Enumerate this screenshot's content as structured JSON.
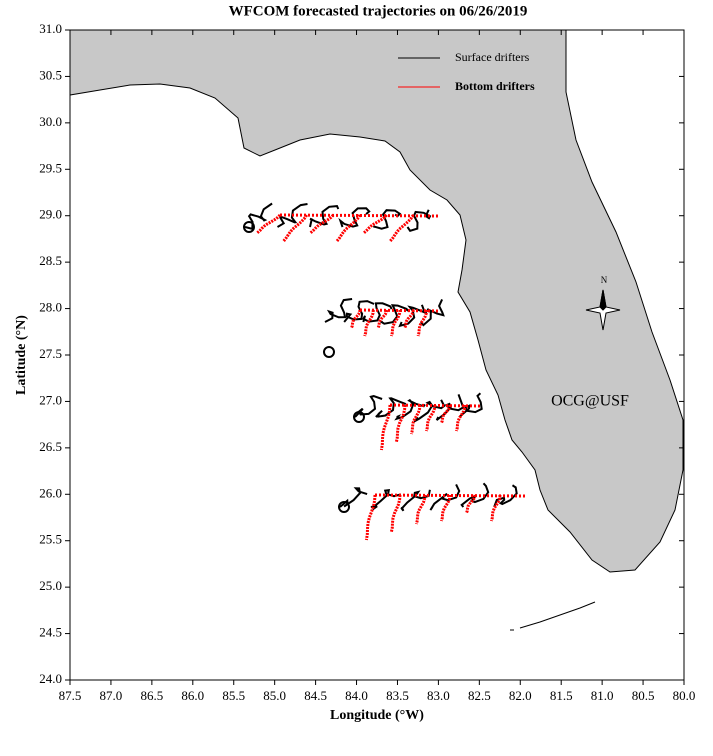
{
  "chart_data": {
    "type": "map",
    "title": "WFCOM forecasted trajectories on 06/26/2019",
    "x_label": "Longitude (°W)",
    "y_label": "Latitude (°N)",
    "xlim": [
      87.5,
      80.0
    ],
    "ylim": [
      24.0,
      31.0
    ],
    "xticks": [
      87.5,
      {
        "value": 87,
        "label": "87.0"
      },
      86.5,
      {
        "value": 86,
        "label": "86.0"
      },
      85.5,
      {
        "value": 85,
        "label": "85.0"
      },
      84.5,
      {
        "value": 84,
        "label": "84.0"
      },
      83.5,
      {
        "value": 83,
        "label": "83.0"
      },
      82.5,
      {
        "value": 82,
        "label": "82.0"
      },
      81.5,
      {
        "value": 81,
        "label": "81.0"
      },
      80.5,
      {
        "value": 80,
        "label": "80.0"
      }
    ],
    "yticks": [
      {
        "value": 24,
        "label": "24.0"
      },
      24.5,
      {
        "value": 25,
        "label": "25.0"
      },
      25.5,
      {
        "value": 26,
        "label": "26.0"
      },
      26.5,
      {
        "value": 27,
        "label": "27.0"
      },
      27.5,
      {
        "value": 28,
        "label": "28.0"
      },
      28.5,
      {
        "value": 29,
        "label": "29.0"
      },
      29.5,
      {
        "value": 30,
        "label": "30.0"
      },
      30.5,
      {
        "value": 31,
        "label": "31.0"
      }
    ],
    "series": [
      {
        "name": "Surface drifters",
        "color": "#000000"
      },
      {
        "name": "Bottom drifters",
        "color": "#ff0000"
      }
    ],
    "annotation": "OCG@USF",
    "annotation_color": "#ff0000",
    "compass_label": "N"
  }
}
